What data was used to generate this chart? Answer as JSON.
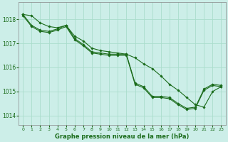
{
  "title": "Graphe pression niveau de la mer (hPa)",
  "background_color": "#cceee8",
  "grid_color": "#aaddcc",
  "line_color": "#1a6b1a",
  "marker_color": "#1a6b1a",
  "ylim": [
    1013.6,
    1018.7
  ],
  "xlim": [
    -0.5,
    23.5
  ],
  "yticks": [
    1014,
    1015,
    1016,
    1017,
    1018
  ],
  "xticks": [
    0,
    1,
    2,
    3,
    4,
    5,
    6,
    7,
    8,
    9,
    10,
    11,
    12,
    13,
    14,
    15,
    16,
    17,
    18,
    19,
    20,
    21,
    22,
    23
  ],
  "series_x": [
    0,
    1,
    2,
    3,
    4,
    5,
    6,
    7,
    8,
    9,
    10,
    11,
    12,
    13,
    14,
    15,
    16,
    17,
    18,
    19,
    20,
    21,
    22,
    23
  ],
  "series": [
    [
      1018.2,
      1017.75,
      1017.55,
      1017.5,
      1017.6,
      1017.75,
      1017.2,
      1016.95,
      1016.65,
      1016.6,
      1016.55,
      1016.55,
      1016.55,
      1015.35,
      1015.2,
      1014.8,
      1014.8,
      1014.75,
      1014.5,
      1014.3,
      1014.35,
      1015.1,
      1015.3,
      1015.25
    ],
    [
      1018.2,
      1017.75,
      1017.55,
      1017.5,
      1017.6,
      1017.75,
      1017.2,
      1016.95,
      1016.65,
      1016.6,
      1016.55,
      1016.55,
      1016.55,
      1015.35,
      1015.2,
      1014.8,
      1014.8,
      1014.75,
      1014.5,
      1014.3,
      1014.35,
      1015.1,
      1015.3,
      1015.25
    ],
    [
      1018.2,
      1018.2,
      1017.85,
      1017.6,
      1017.65,
      1017.75,
      1017.25,
      1017.05,
      1016.75,
      1016.7,
      1016.65,
      1016.65,
      1016.65,
      1016.55,
      1016.2,
      1016.1,
      1015.8,
      1015.5,
      1015.1,
      1014.8,
      1014.5,
      1014.4,
      1015.1,
      1015.25
    ]
  ]
}
